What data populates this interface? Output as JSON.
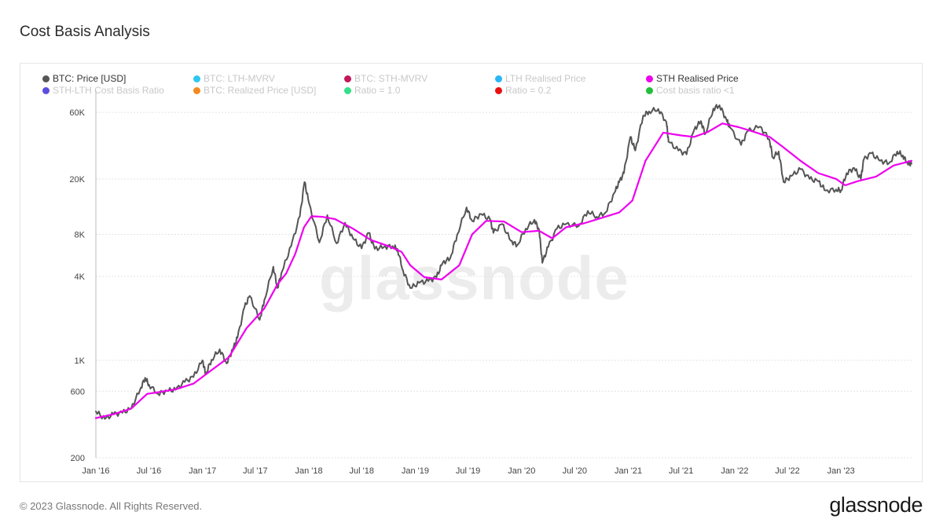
{
  "page": {
    "title": "Cost Basis Analysis",
    "footer": "© 2023 Glassnode. All Rights Reserved.",
    "logo": "glassnode",
    "watermark": "glassnode"
  },
  "legend": [
    {
      "label": "BTC: Price [USD]",
      "color": "#555555",
      "active": true
    },
    {
      "label": "BTC: LTH-MVRV",
      "color": "#2ec7f0",
      "active": false
    },
    {
      "label": "BTC: STH-MVRV",
      "color": "#c2185b",
      "active": false
    },
    {
      "label": "LTH Realised Price",
      "color": "#29b6f6",
      "active": false
    },
    {
      "label": "STH Realised Price",
      "color": "#ee00ee",
      "active": true
    },
    {
      "label": "STH-LTH Cost Basis Ratio",
      "color": "#5c4de0",
      "active": false
    },
    {
      "label": "BTC: Realized Price [USD]",
      "color": "#f5891f",
      "active": false
    },
    {
      "label": "Ratio = 1.0",
      "color": "#34e089",
      "active": false
    },
    {
      "label": "Ratio = 0.2",
      "color": "#e91010",
      "active": false
    },
    {
      "label": "Cost basis ratio <1",
      "color": "#22c03a",
      "active": false
    }
  ],
  "chart_data": {
    "type": "line",
    "title": "Cost Basis Analysis",
    "xlabel": "",
    "ylabel": "",
    "y_scale": "log",
    "ylim": [
      200,
      80000
    ],
    "xlim": [
      "2016-01-01",
      "2023-08-31"
    ],
    "y_ticks": [
      {
        "value": 200,
        "label": "200"
      },
      {
        "value": 600,
        "label": "600"
      },
      {
        "value": 1000,
        "label": "1K"
      },
      {
        "value": 4000,
        "label": "4K"
      },
      {
        "value": 8000,
        "label": "8K"
      },
      {
        "value": 20000,
        "label": "20K"
      },
      {
        "value": 60000,
        "label": "60K"
      }
    ],
    "x_ticks": [
      {
        "value": "2016-01-01",
        "label": "Jan '16"
      },
      {
        "value": "2016-07-01",
        "label": "Jul '16"
      },
      {
        "value": "2017-01-01",
        "label": "Jan '17"
      },
      {
        "value": "2017-07-01",
        "label": "Jul '17"
      },
      {
        "value": "2018-01-01",
        "label": "Jan '18"
      },
      {
        "value": "2018-07-01",
        "label": "Jul '18"
      },
      {
        "value": "2019-01-01",
        "label": "Jan '19"
      },
      {
        "value": "2019-07-01",
        "label": "Jul '19"
      },
      {
        "value": "2020-01-01",
        "label": "Jan '20"
      },
      {
        "value": "2020-07-01",
        "label": "Jul '20"
      },
      {
        "value": "2021-01-01",
        "label": "Jan '21"
      },
      {
        "value": "2021-07-01",
        "label": "Jul '21"
      },
      {
        "value": "2022-01-01",
        "label": "Jan '22"
      },
      {
        "value": "2022-07-01",
        "label": "Jul '22"
      },
      {
        "value": "2023-01-01",
        "label": "Jan '23"
      }
    ],
    "grid": true,
    "series": [
      {
        "name": "BTC: Price [USD]",
        "color": "#555555",
        "x": [
          "2016-01-01",
          "2016-02-01",
          "2016-03-01",
          "2016-04-01",
          "2016-05-01",
          "2016-06-01",
          "2016-06-18",
          "2016-07-01",
          "2016-08-01",
          "2016-09-01",
          "2016-10-01",
          "2016-11-01",
          "2016-12-01",
          "2017-01-01",
          "2017-01-12",
          "2017-02-01",
          "2017-03-01",
          "2017-03-25",
          "2017-04-15",
          "2017-05-01",
          "2017-05-25",
          "2017-06-12",
          "2017-07-16",
          "2017-08-01",
          "2017-09-01",
          "2017-09-15",
          "2017-10-01",
          "2017-11-01",
          "2017-12-01",
          "2017-12-17",
          "2018-01-01",
          "2018-02-06",
          "2018-03-05",
          "2018-04-06",
          "2018-05-05",
          "2018-06-01",
          "2018-07-01",
          "2018-07-25",
          "2018-08-15",
          "2018-09-15",
          "2018-10-15",
          "2018-11-01",
          "2018-11-20",
          "2018-12-15",
          "2019-01-15",
          "2019-02-15",
          "2019-03-15",
          "2019-04-05",
          "2019-05-01",
          "2019-05-25",
          "2019-06-26",
          "2019-07-15",
          "2019-08-15",
          "2019-09-15",
          "2019-09-26",
          "2019-10-26",
          "2019-11-25",
          "2019-12-17",
          "2020-01-15",
          "2020-02-14",
          "2020-03-01",
          "2020-03-12",
          "2020-04-01",
          "2020-05-01",
          "2020-06-01",
          "2020-07-15",
          "2020-08-15",
          "2020-09-15",
          "2020-10-15",
          "2020-11-15",
          "2020-12-01",
          "2020-12-17",
          "2021-01-08",
          "2021-01-25",
          "2021-02-21",
          "2021-03-13",
          "2021-04-14",
          "2021-05-12",
          "2021-05-19",
          "2021-06-22",
          "2021-07-20",
          "2021-08-15",
          "2021-09-07",
          "2021-09-22",
          "2021-10-20",
          "2021-11-10",
          "2021-12-04",
          "2021-12-15",
          "2022-01-23",
          "2022-02-15",
          "2022-03-29",
          "2022-04-30",
          "2022-05-12",
          "2022-06-01",
          "2022-06-18",
          "2022-07-15",
          "2022-08-15",
          "2022-09-15",
          "2022-10-15",
          "2022-11-09",
          "2022-12-15",
          "2023-01-01",
          "2023-01-20",
          "2023-02-15",
          "2023-03-10",
          "2023-03-20",
          "2023-04-14",
          "2023-05-15",
          "2023-06-15",
          "2023-07-13",
          "2023-08-01",
          "2023-08-17",
          "2023-08-31"
        ],
        "y": [
          430,
          380,
          410,
          420,
          450,
          620,
          750,
          670,
          575,
          605,
          615,
          700,
          760,
          1000,
          800,
          1010,
          1200,
          950,
          1200,
          1450,
          2400,
          2900,
          1950,
          2700,
          4700,
          3300,
          4350,
          6600,
          10800,
          19000,
          13500,
          7000,
          11000,
          6900,
          9700,
          7500,
          6350,
          8200,
          6300,
          6500,
          6600,
          6300,
          4400,
          3300,
          3600,
          3700,
          3950,
          5000,
          5400,
          8000,
          12500,
          10000,
          11200,
          10200,
          8200,
          9500,
          7200,
          6700,
          8800,
          10200,
          8600,
          5000,
          6500,
          8800,
          9500,
          9200,
          11800,
          10700,
          11500,
          16000,
          19000,
          22000,
          40000,
          32000,
          57000,
          61000,
          63500,
          51000,
          37000,
          32000,
          30000,
          45000,
          52000,
          42000,
          64000,
          67500,
          53000,
          47000,
          35000,
          44000,
          47500,
          38500,
          28500,
          31500,
          19000,
          21000,
          23500,
          20000,
          19200,
          16500,
          16800,
          16600,
          22000,
          24000,
          20000,
          27500,
          30500,
          27000,
          26000,
          31500,
          29500,
          26000,
          25800
        ]
      },
      {
        "name": "STH Realised Price",
        "color": "#ee00ee",
        "x": [
          "2016-01-01",
          "2016-03-01",
          "2016-05-01",
          "2016-06-25",
          "2016-08-01",
          "2016-10-01",
          "2016-12-01",
          "2017-02-01",
          "2017-04-01",
          "2017-06-01",
          "2017-08-01",
          "2017-09-15",
          "2017-10-15",
          "2017-11-15",
          "2017-12-15",
          "2018-01-10",
          "2018-02-15",
          "2018-04-01",
          "2018-06-01",
          "2018-08-01",
          "2018-10-01",
          "2018-11-15",
          "2018-12-15",
          "2019-02-01",
          "2019-04-01",
          "2019-06-01",
          "2019-07-15",
          "2019-09-01",
          "2019-11-01",
          "2020-01-01",
          "2020-03-01",
          "2020-04-15",
          "2020-06-01",
          "2020-08-01",
          "2020-10-01",
          "2020-12-01",
          "2021-01-15",
          "2021-03-01",
          "2021-05-01",
          "2021-07-01",
          "2021-08-15",
          "2021-10-01",
          "2021-11-20",
          "2022-01-15",
          "2022-03-01",
          "2022-05-01",
          "2022-06-15",
          "2022-08-15",
          "2022-10-15",
          "2022-12-15",
          "2023-01-15",
          "2023-03-01",
          "2023-05-01",
          "2023-07-01",
          "2023-08-31"
        ],
        "y": [
          385,
          410,
          450,
          575,
          590,
          620,
          680,
          850,
          1050,
          1700,
          2350,
          3500,
          4200,
          5800,
          9000,
          10800,
          10700,
          10300,
          8800,
          7300,
          6600,
          6000,
          4800,
          3950,
          3800,
          4800,
          8000,
          10000,
          9900,
          8300,
          8500,
          7500,
          9000,
          9600,
          10500,
          11500,
          14000,
          27000,
          43000,
          41000,
          40000,
          43500,
          50000,
          47000,
          44000,
          40000,
          34000,
          27000,
          22000,
          20000,
          18000,
          19300,
          20800,
          25000,
          27000
        ]
      }
    ]
  }
}
